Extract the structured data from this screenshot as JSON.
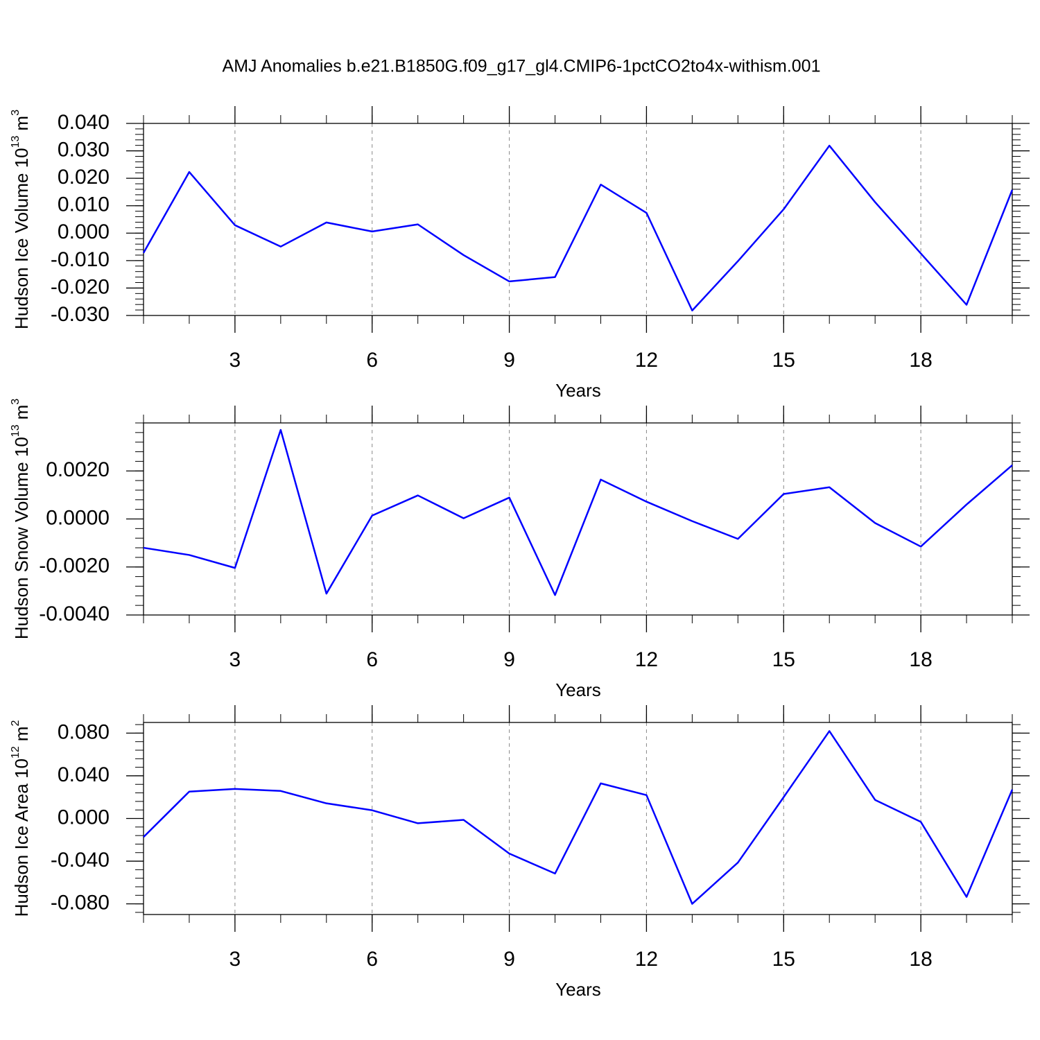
{
  "title": "AMJ Anomalies b.e21.B1850G.f09_g17_gl4.CMIP6-1pctCO2to4x-withism.001",
  "chart_data": [
    {
      "type": "line",
      "xlabel": "Years",
      "ylabel": {
        "text": "Hudson Ice Volume 10",
        "exp": "13",
        "unit": "m",
        "unit_exp": "3"
      },
      "x": [
        1,
        2,
        3,
        4,
        5,
        6,
        7,
        8,
        9,
        10,
        11,
        12,
        13,
        14,
        15,
        16,
        17,
        18,
        19,
        20
      ],
      "series": [
        {
          "color": "#0000ff",
          "values": [
            -0.0072,
            0.0223,
            0.0029,
            -0.0049,
            0.0039,
            0.0006,
            0.0032,
            -0.008,
            -0.0176,
            -0.016,
            0.0177,
            0.0074,
            -0.0282,
            -0.0102,
            0.0087,
            0.0319,
            0.0113,
            -0.0074,
            -0.0261,
            0.0158
          ]
        }
      ],
      "xlim": [
        1,
        20
      ],
      "xticks": [
        3,
        6,
        9,
        12,
        15,
        18
      ],
      "ylim": [
        -0.03,
        0.04
      ],
      "yticks": [
        {
          "value": -0.03,
          "label": "-0.030"
        },
        {
          "value": -0.02,
          "label": "-0.020"
        },
        {
          "value": -0.01,
          "label": "-0.010"
        },
        {
          "value": 0,
          "label": "0.000"
        },
        {
          "value": 0.01,
          "label": "0.010"
        },
        {
          "value": 0.02,
          "label": "0.020"
        },
        {
          "value": 0.03,
          "label": "0.030"
        },
        {
          "value": 0.04,
          "label": "0.040"
        }
      ],
      "grid": "x"
    },
    {
      "type": "line",
      "xlabel": "Years",
      "ylabel": {
        "text": "Hudson Snow Volume 10",
        "exp": "13",
        "unit": "m",
        "unit_exp": "3"
      },
      "x": [
        1,
        2,
        3,
        4,
        5,
        6,
        7,
        8,
        9,
        10,
        11,
        12,
        13,
        14,
        15,
        16,
        17,
        18,
        19,
        20
      ],
      "series": [
        {
          "color": "#0000ff",
          "values": [
            -0.0012,
            -0.0015,
            -0.00204,
            0.00371,
            -0.00311,
            0.00014,
            0.00098,
            3e-05,
            0.00089,
            -0.00317,
            0.00164,
            0.00072,
            -9e-05,
            -0.00083,
            0.00104,
            0.00132,
            -0.00017,
            -0.00115,
            0.0006,
            0.00224
          ]
        }
      ],
      "xlim": [
        1,
        20
      ],
      "xticks": [
        3,
        6,
        9,
        12,
        15,
        18
      ],
      "ylim": [
        -0.004,
        0.004
      ],
      "yticks": [
        {
          "value": -0.004,
          "label": "-0.0040"
        },
        {
          "value": -0.002,
          "label": "-0.0020"
        },
        {
          "value": 0,
          "label": "0.0000"
        },
        {
          "value": 0.002,
          "label": "0.0020"
        }
      ],
      "grid": "x"
    },
    {
      "type": "line",
      "xlabel": "Years",
      "ylabel": {
        "text": "Hudson Ice Area 10",
        "exp": "12",
        "unit": "m",
        "unit_exp": "2"
      },
      "x": [
        1,
        2,
        3,
        4,
        5,
        6,
        7,
        8,
        9,
        10,
        11,
        12,
        13,
        14,
        15,
        16,
        17,
        18,
        19,
        20
      ],
      "series": [
        {
          "color": "#0000ff",
          "values": [
            -0.0174,
            0.0252,
            0.0277,
            0.0258,
            0.0142,
            0.0077,
            -0.0045,
            -0.0013,
            -0.0329,
            -0.0516,
            0.0329,
            0.0219,
            -0.08,
            -0.0413,
            0.02,
            0.0819,
            0.0174,
            -0.0032,
            -0.0735,
            0.0271
          ]
        }
      ],
      "xlim": [
        1,
        20
      ],
      "xticks": [
        3,
        6,
        9,
        12,
        15,
        18
      ],
      "ylim": [
        -0.09,
        0.09
      ],
      "yticks": [
        {
          "value": -0.08,
          "label": "-0.080"
        },
        {
          "value": -0.04,
          "label": "-0.040"
        },
        {
          "value": 0,
          "label": "0.000"
        },
        {
          "value": 0.04,
          "label": "0.040"
        },
        {
          "value": 0.08,
          "label": "0.080"
        }
      ],
      "grid": "x"
    }
  ]
}
